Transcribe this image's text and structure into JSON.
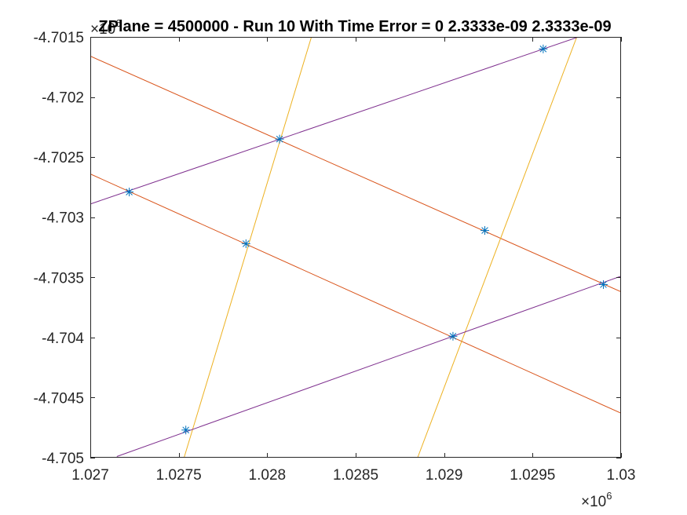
{
  "chart_data": {
    "type": "line",
    "title": "ZPlane = 4500000 - Run 10 With Time Error = 0  2.3333e-09  2.3333e-09",
    "xlabel": "",
    "ylabel": "",
    "xlim": [
      1.027,
      1.03
    ],
    "ylim": [
      -4.705,
      -4.7015
    ],
    "x_scale_label": "×10",
    "x_scale_exponent": "6",
    "y_scale_label": "×10",
    "y_scale_exponent": "6",
    "xticks": [
      1.027,
      1.0275,
      1.028,
      1.0285,
      1.029,
      1.0295,
      1.03
    ],
    "xtick_labels": [
      "1.027",
      "1.0275",
      "1.028",
      "1.0285",
      "1.029",
      "1.0295",
      "1.03"
    ],
    "yticks": [
      -4.7015,
      -4.702,
      -4.7025,
      -4.703,
      -4.7035,
      -4.704,
      -4.7045,
      -4.705
    ],
    "ytick_labels": [
      "-4.7015",
      "-4.702",
      "-4.7025",
      "-4.703",
      "-4.7035",
      "-4.704",
      "-4.7045",
      "-4.705"
    ],
    "grid": false,
    "series": [
      {
        "color": "#d95319",
        "x": [
          1.027,
          1.03
        ],
        "y": [
          -4.70166,
          -4.70362
        ]
      },
      {
        "color": "#d95319",
        "x": [
          1.027,
          1.03
        ],
        "y": [
          -4.70264,
          -4.70463
        ]
      },
      {
        "color": "#edb120",
        "x": [
          1.02753,
          1.02825
        ],
        "y": [
          -4.705,
          -4.7015
        ]
      },
      {
        "color": "#edb120",
        "x": [
          1.02885,
          1.02975
        ],
        "y": [
          -4.705,
          -4.7015
        ]
      },
      {
        "color": "#7e2f8e",
        "x": [
          1.027,
          1.0298
        ],
        "y": [
          -4.70289,
          -4.70148
        ]
      },
      {
        "color": "#7e2f8e",
        "x": [
          1.02715,
          1.03
        ],
        "y": [
          -4.70499,
          -4.70349
        ]
      }
    ],
    "markers": {
      "style": "asterisk",
      "color": "#0072bd",
      "points": [
        {
          "x": 1.02722,
          "y": -4.70279
        },
        {
          "x": 1.02807,
          "y": -4.70235
        },
        {
          "x": 1.02956,
          "y": -4.7016
        },
        {
          "x": 1.02788,
          "y": -4.70322
        },
        {
          "x": 1.02923,
          "y": -4.70311
        },
        {
          "x": 1.02905,
          "y": -4.70399
        },
        {
          "x": 1.0299,
          "y": -4.70356
        },
        {
          "x": 1.02754,
          "y": -4.70477
        }
      ]
    }
  }
}
